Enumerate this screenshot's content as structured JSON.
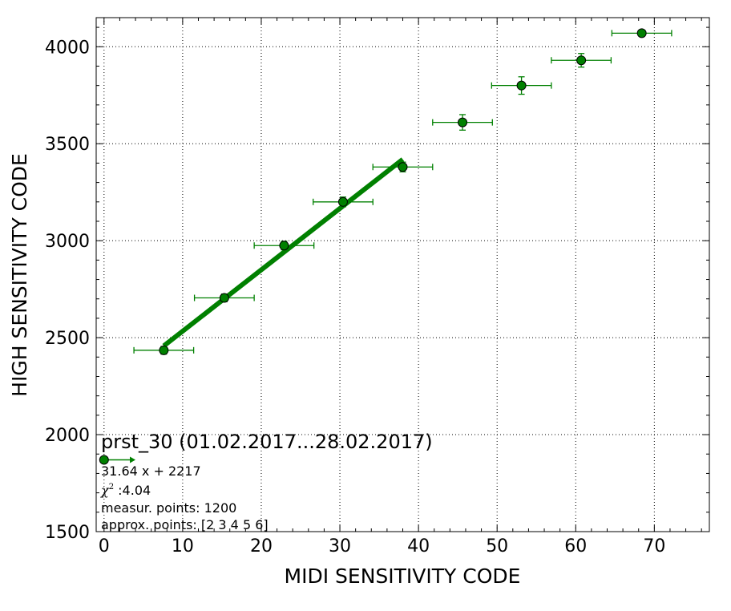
{
  "chart_data": {
    "type": "scatter",
    "xlabel": "MIDI SENSITIVITY CODE",
    "ylabel": "HIGH SENSITIVITY CODE",
    "xlim": [
      -1,
      77
    ],
    "ylim": [
      1500,
      4150
    ],
    "xticks": [
      0,
      10,
      20,
      30,
      40,
      50,
      60,
      70
    ],
    "yticks": [
      1500,
      2000,
      2500,
      3000,
      3500,
      4000
    ],
    "grid": true,
    "colors": {
      "marker": "#008000",
      "fit": "#008000",
      "errorbar": "#008000"
    },
    "series": [
      {
        "x": [
          7.6,
          15.3,
          22.9,
          30.4,
          38.0,
          45.6,
          53.1,
          60.7,
          68.4
        ],
        "y": [
          2435,
          2705,
          2975,
          3200,
          3380,
          3610,
          3800,
          3930,
          4070
        ],
        "xerr": [
          3.8,
          3.8,
          3.8,
          3.8,
          3.8,
          3.8,
          3.8,
          3.8,
          3.8
        ],
        "yerr": [
          20,
          20,
          22,
          25,
          25,
          40,
          45,
          35,
          15
        ]
      }
    ],
    "fit_line": {
      "x": [
        7.6,
        38.0
      ],
      "slope": 31.64,
      "intercept": 2217
    },
    "legend_marker": {
      "x": 0,
      "y": 1870,
      "arrow_to_x": 4
    },
    "annotation": {
      "title": "prst_30 (01.02.2017...28.02.2017)",
      "equation": "31.64 x + 2217",
      "chi_symbol": "χ",
      "chi_exp": "2",
      "chi_value": " :4.04",
      "measur": "measur. points: 1200",
      "approx": "approx. points: [2 3 4 5 6]"
    }
  }
}
